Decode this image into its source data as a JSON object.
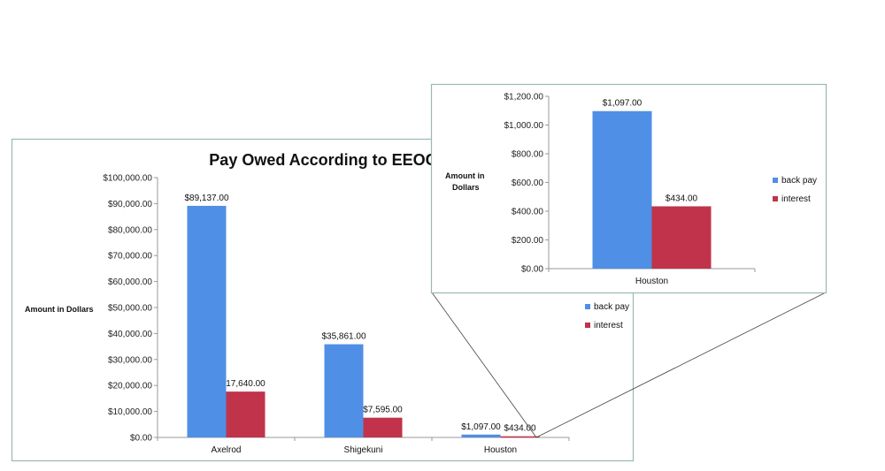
{
  "chart_data": [
    {
      "type": "bar",
      "title": "Pay Owed According to EEOC",
      "ylabel": "Amount in Dollars",
      "xlabel": "",
      "categories": [
        "Axelrod",
        "Shigekuni",
        "Houston"
      ],
      "ylim": [
        0,
        100000
      ],
      "yticks": [
        "$0.00",
        "$10,000.00",
        "$20,000.00",
        "$30,000.00",
        "$40,000.00",
        "$50,000.00",
        "$60,000.00",
        "$70,000.00",
        "$80,000.00",
        "$90,000.00",
        "$100,000.00"
      ],
      "grid": false,
      "legend": "right",
      "series": [
        {
          "name": "back pay",
          "color": "#4f8fe6",
          "values": [
            89137,
            35861,
            1097
          ],
          "labels": [
            "$89,137.00",
            "$35,861.00",
            "$1,097.00"
          ]
        },
        {
          "name": "interest",
          "color": "#c0334b",
          "values": [
            17640,
            7595,
            434
          ],
          "labels": [
            "17,640.00",
            "$7,595.00",
            "$434.00"
          ]
        }
      ]
    },
    {
      "type": "bar",
      "title": "",
      "ylabel_lines": [
        "Amount in",
        "Dollars"
      ],
      "xlabel": "",
      "categories": [
        "Houston"
      ],
      "ylim": [
        0,
        1200
      ],
      "yticks": [
        "$0.00",
        "$200.00",
        "$400.00",
        "$600.00",
        "$800.00",
        "$1,000.00",
        "$1,200.00"
      ],
      "grid": false,
      "legend": "right",
      "series": [
        {
          "name": "back pay",
          "color": "#4f8fe6",
          "values": [
            1097
          ],
          "labels": [
            "$1,097.00"
          ]
        },
        {
          "name": "interest",
          "color": "#c0334b",
          "values": [
            434
          ],
          "labels": [
            "$434.00"
          ]
        }
      ]
    }
  ]
}
